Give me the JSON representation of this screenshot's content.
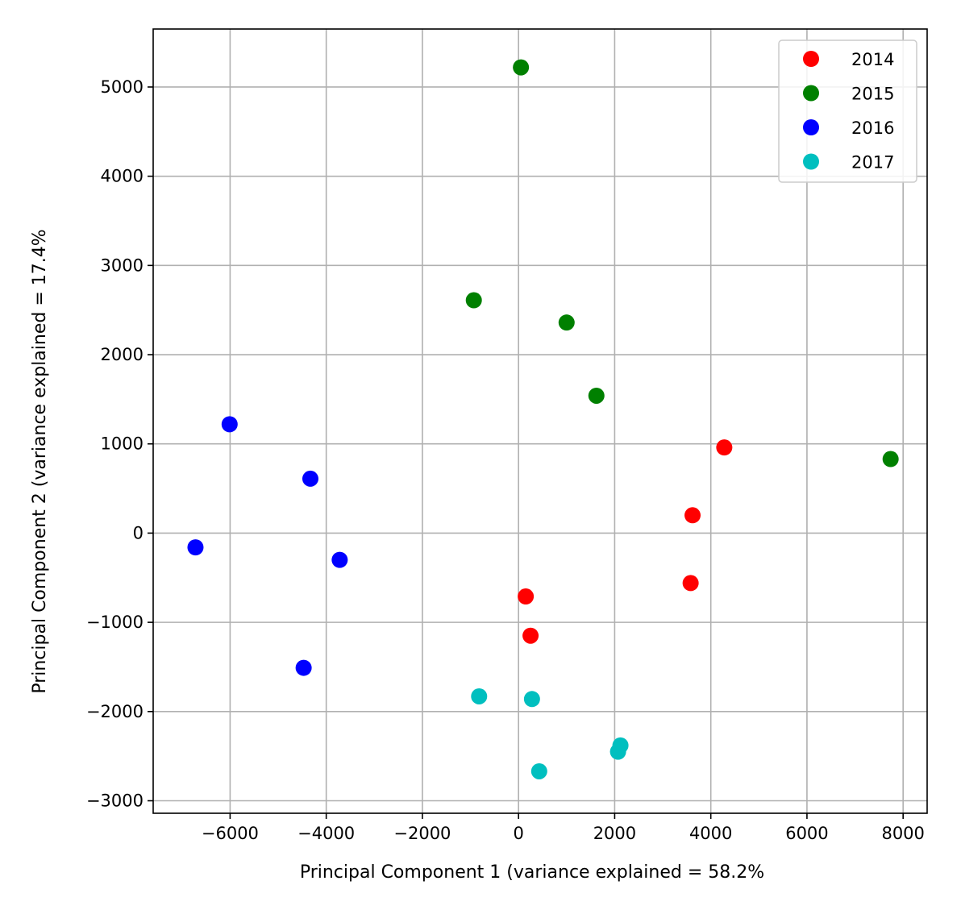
{
  "chart_data": {
    "type": "scatter",
    "title": "",
    "xlabel": "Principal Component 1 (variance explained = 58.2%",
    "ylabel": "Principal Component 2 (variance explained = 17.4%",
    "xlim": [
      -7600,
      8500
    ],
    "ylim": [
      -3140,
      5650
    ],
    "xticks": [
      -6000,
      -4000,
      -2000,
      0,
      2000,
      4000,
      6000,
      8000
    ],
    "xtick_labels": [
      "−6000",
      "−4000",
      "−2000",
      "0",
      "2000",
      "4000",
      "6000",
      "8000"
    ],
    "yticks": [
      -3000,
      -2000,
      -1000,
      0,
      1000,
      2000,
      3000,
      4000,
      5000
    ],
    "ytick_labels": [
      "−3000",
      "−2000",
      "−1000",
      "0",
      "1000",
      "2000",
      "3000",
      "4000",
      "5000"
    ],
    "grid": true,
    "legend_position": "top-right",
    "series": [
      {
        "name": "2014",
        "color": "#ff0000",
        "points": [
          [
            4280,
            960
          ],
          [
            3620,
            200
          ],
          [
            3580,
            -560
          ],
          [
            150,
            -710
          ],
          [
            250,
            -1150
          ]
        ]
      },
      {
        "name": "2015",
        "color": "#008000",
        "points": [
          [
            50,
            5220
          ],
          [
            -930,
            2610
          ],
          [
            1000,
            2360
          ],
          [
            1620,
            1540
          ],
          [
            7740,
            830
          ]
        ]
      },
      {
        "name": "2016",
        "color": "#0000ff",
        "points": [
          [
            -6010,
            1220
          ],
          [
            -4330,
            610
          ],
          [
            -6720,
            -160
          ],
          [
            -3720,
            -300
          ],
          [
            -4470,
            -1510
          ]
        ]
      },
      {
        "name": "2017",
        "color": "#00bfbf",
        "points": [
          [
            -820,
            -1830
          ],
          [
            280,
            -1860
          ],
          [
            2120,
            -2380
          ],
          [
            2070,
            -2450
          ],
          [
            430,
            -2670
          ]
        ]
      }
    ]
  }
}
